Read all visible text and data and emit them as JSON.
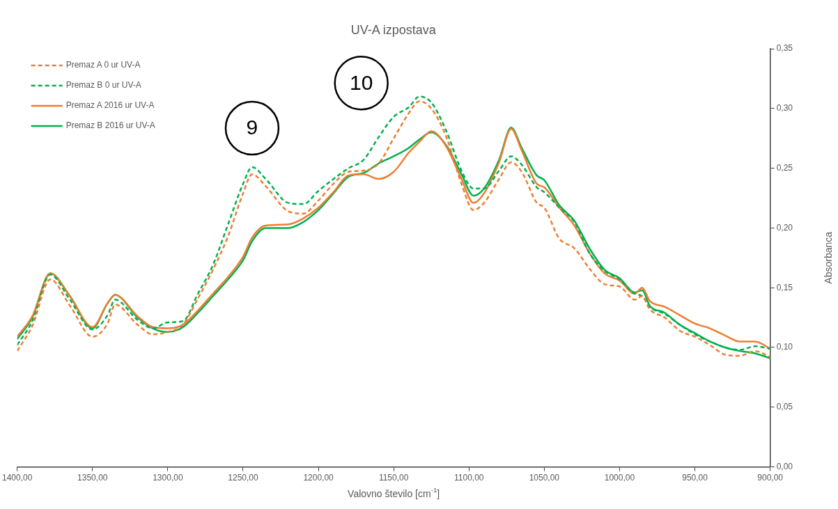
{
  "chart_data": {
    "type": "line",
    "title": "UV-A izpostava",
    "xlabel": "Valovno število [cm$^{-1}$]",
    "ylabel": "Absorbanca",
    "x": [
      1400,
      1390,
      1378,
      1365,
      1350,
      1340,
      1335,
      1320,
      1310,
      1300,
      1290,
      1280,
      1270,
      1260,
      1250,
      1244,
      1235,
      1220,
      1210,
      1200,
      1190,
      1180,
      1170,
      1160,
      1150,
      1140,
      1133,
      1125,
      1115,
      1105,
      1097,
      1090,
      1080,
      1072,
      1065,
      1055,
      1050,
      1040,
      1030,
      1020,
      1010,
      1000,
      990,
      985,
      980,
      970,
      960,
      950,
      940,
      930,
      920,
      910,
      900
    ],
    "series": [
      {
        "name": "Premaz A 0 ur UV-A",
        "color": "#ed7d31",
        "line_style": "dashed",
        "values": [
          0.097,
          0.118,
          0.157,
          0.135,
          0.109,
          0.12,
          0.136,
          0.119,
          0.111,
          0.113,
          0.119,
          0.141,
          0.165,
          0.193,
          0.229,
          0.245,
          0.235,
          0.214,
          0.212,
          0.223,
          0.237,
          0.247,
          0.248,
          0.254,
          0.275,
          0.296,
          0.306,
          0.3,
          0.276,
          0.237,
          0.215,
          0.221,
          0.241,
          0.255,
          0.247,
          0.221,
          0.217,
          0.191,
          0.183,
          0.166,
          0.153,
          0.151,
          0.14,
          0.143,
          0.132,
          0.125,
          0.114,
          0.109,
          0.102,
          0.094,
          0.093,
          0.097,
          0.092
        ]
      },
      {
        "name": "Premaz B 0 ur UV-A",
        "color": "#00b050",
        "line_style": "dashed",
        "values": [
          0.102,
          0.122,
          0.161,
          0.14,
          0.115,
          0.127,
          0.14,
          0.123,
          0.116,
          0.121,
          0.122,
          0.145,
          0.169,
          0.203,
          0.237,
          0.251,
          0.241,
          0.221,
          0.22,
          0.231,
          0.241,
          0.25,
          0.257,
          0.276,
          0.293,
          0.301,
          0.31,
          0.305,
          0.281,
          0.248,
          0.233,
          0.233,
          0.248,
          0.26,
          0.253,
          0.234,
          0.23,
          0.217,
          0.205,
          0.179,
          0.164,
          0.157,
          0.145,
          0.143,
          0.134,
          0.128,
          0.119,
          0.111,
          0.105,
          0.1,
          0.098,
          0.101,
          0.099
        ]
      },
      {
        "name": "Premaz A 2016 ur UV-A",
        "color": "#ed7d31",
        "line_style": "solid",
        "values": [
          0.109,
          0.126,
          0.162,
          0.143,
          0.117,
          0.137,
          0.144,
          0.126,
          0.117,
          0.116,
          0.119,
          0.131,
          0.145,
          0.159,
          0.176,
          0.192,
          0.202,
          0.203,
          0.208,
          0.217,
          0.23,
          0.244,
          0.245,
          0.241,
          0.247,
          0.263,
          0.272,
          0.281,
          0.268,
          0.241,
          0.221,
          0.229,
          0.255,
          0.283,
          0.265,
          0.237,
          0.234,
          0.217,
          0.202,
          0.179,
          0.162,
          0.156,
          0.145,
          0.15,
          0.139,
          0.134,
          0.127,
          0.12,
          0.116,
          0.11,
          0.105,
          0.105,
          0.099
        ]
      },
      {
        "name": "Premaz B 2016 ur UV-A",
        "color": "#00b050",
        "line_style": "solid",
        "values": [
          0.107,
          0.125,
          0.162,
          0.143,
          0.116,
          0.137,
          0.144,
          0.125,
          0.116,
          0.113,
          0.117,
          0.129,
          0.143,
          0.157,
          0.173,
          0.189,
          0.2,
          0.2,
          0.205,
          0.215,
          0.229,
          0.243,
          0.246,
          0.254,
          0.26,
          0.267,
          0.274,
          0.28,
          0.269,
          0.245,
          0.227,
          0.233,
          0.257,
          0.284,
          0.267,
          0.244,
          0.24,
          0.219,
          0.206,
          0.183,
          0.165,
          0.158,
          0.146,
          0.148,
          0.135,
          0.129,
          0.119,
          0.112,
          0.105,
          0.1,
          0.097,
          0.095,
          0.091
        ]
      }
    ],
    "xlim": [
      1400,
      900
    ],
    "xticks": [
      {
        "value": 1400,
        "label": "1400,00"
      },
      {
        "value": 1350,
        "label": "1350,00"
      },
      {
        "value": 1300,
        "label": "1300,00"
      },
      {
        "value": 1250,
        "label": "1250,00"
      },
      {
        "value": 1200,
        "label": "1200,00"
      },
      {
        "value": 1150,
        "label": "1150,00"
      },
      {
        "value": 1100,
        "label": "1100,00"
      },
      {
        "value": 1050,
        "label": "1050,00"
      },
      {
        "value": 1000,
        "label": "1000,00"
      },
      {
        "value": 950,
        "label": "950,00"
      },
      {
        "value": 900,
        "label": "900,00"
      }
    ],
    "ylim": [
      0,
      0.35
    ],
    "yticks": [
      {
        "value": 0,
        "label": "0,00"
      },
      {
        "value": 0.05,
        "label": "0,05"
      },
      {
        "value": 0.1,
        "label": "0,10"
      },
      {
        "value": 0.15,
        "label": "0,15"
      },
      {
        "value": 0.2,
        "label": "0,20"
      },
      {
        "value": 0.25,
        "label": "0,25"
      },
      {
        "value": 0.3,
        "label": "0,30"
      },
      {
        "value": 0.35,
        "label": "0,35"
      }
    ],
    "annotations": [
      "9",
      "10"
    ],
    "legend": "top left",
    "grid": false,
    "marker": "none"
  }
}
